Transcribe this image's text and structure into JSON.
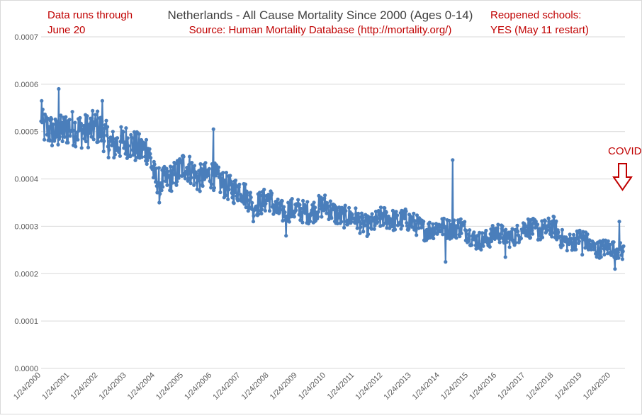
{
  "chart_data": {
    "type": "line",
    "title": "Netherlands - All Cause Mortality Since 2000 (Ages 0-14)",
    "subtitle": "Source: Human Mortality Database (http://mortality.org/)",
    "annotations": {
      "top_left": [
        "Data runs through",
        "June 20"
      ],
      "top_right": [
        "Reopened schools:",
        "YES (May 11 restart)"
      ],
      "covid": "COVID"
    },
    "series_color": "#4a7ebb",
    "annotation_color": "#c00000",
    "ylim": [
      0,
      0.0007
    ],
    "yticks": [
      "0.0000",
      "0.0001",
      "0.0002",
      "0.0003",
      "0.0004",
      "0.0005",
      "0.0006",
      "0.0007"
    ],
    "ytick_values": [
      0,
      0.0001,
      0.0002,
      0.0003,
      0.0004,
      0.0005,
      0.0006,
      0.0007
    ],
    "xlim": [
      2000.0,
      2020.5
    ],
    "xtick_labels": [
      "1/24/2000",
      "1/24/2001",
      "1/24/2002",
      "1/24/2003",
      "1/24/2004",
      "1/24/2005",
      "1/24/2006",
      "1/24/2007",
      "1/24/2008",
      "1/24/2009",
      "1/24/2010",
      "1/24/2011",
      "1/24/2012",
      "1/24/2013",
      "1/24/2014",
      "1/24/2015",
      "1/24/2016",
      "1/24/2017",
      "1/24/2018",
      "1/24/2019",
      "1/24/2020"
    ],
    "xtick_positions": [
      2000,
      2001,
      2002,
      2003,
      2004,
      2005,
      2006,
      2007,
      2008,
      2009,
      2010,
      2011,
      2012,
      2013,
      2014,
      2015,
      2016,
      2017,
      2018,
      2019,
      2020
    ],
    "grid": true,
    "series": [
      {
        "x": [
          2000.0,
          2000.25,
          2000.5,
          2000.75,
          2001.0,
          2001.25,
          2001.5,
          2001.75,
          2002.0,
          2002.25,
          2002.5,
          2002.75,
          2003.0,
          2003.25,
          2003.5,
          2003.75,
          2004.0,
          2004.25,
          2004.5,
          2004.75,
          2005.0,
          2005.25,
          2005.5,
          2005.75,
          2006.0,
          2006.25,
          2006.5,
          2006.75,
          2007.0,
          2007.25,
          2007.5,
          2007.75,
          2008.0,
          2008.25,
          2008.5,
          2008.75,
          2009.0,
          2009.25,
          2009.5,
          2009.75,
          2010.0,
          2010.25,
          2010.5,
          2010.75,
          2011.0,
          2011.25,
          2011.5,
          2011.75,
          2012.0,
          2012.25,
          2012.5,
          2012.75,
          2013.0,
          2013.25,
          2013.5,
          2013.75,
          2014.0,
          2014.25,
          2014.5,
          2014.75,
          2015.0,
          2015.25,
          2015.5,
          2015.75,
          2016.0,
          2016.25,
          2016.5,
          2016.75,
          2017.0,
          2017.25,
          2017.5,
          2017.75,
          2018.0,
          2018.25,
          2018.5,
          2018.75,
          2019.0,
          2019.25,
          2019.5,
          2019.75,
          2020.0,
          2020.25,
          2020.45
        ],
        "y": [
          0.00051,
          0.000505,
          0.000495,
          0.0005,
          0.00051,
          0.000505,
          0.0005,
          0.000505,
          0.00051,
          0.00049,
          0.00047,
          0.000475,
          0.00048,
          0.00047,
          0.00046,
          0.000465,
          0.0004,
          0.000395,
          0.0004,
          0.00041,
          0.00043,
          0.00042,
          0.0004,
          0.000405,
          0.00041,
          0.000395,
          0.000385,
          0.000375,
          0.00038,
          0.00036,
          0.000345,
          0.00035,
          0.00036,
          0.000335,
          0.00033,
          0.000335,
          0.000335,
          0.00033,
          0.00033,
          0.00034,
          0.000345,
          0.00033,
          0.00032,
          0.00032,
          0.00032,
          0.000305,
          0.0003,
          0.00031,
          0.00032,
          0.000315,
          0.00031,
          0.000315,
          0.00031,
          0.0003,
          0.00029,
          0.000295,
          0.0003,
          0.000295,
          0.000295,
          0.0003,
          0.000285,
          0.00027,
          0.00027,
          0.000275,
          0.00029,
          0.00028,
          0.000275,
          0.000285,
          0.0003,
          0.000295,
          0.00029,
          0.000295,
          0.0003,
          0.000275,
          0.000265,
          0.00027,
          0.00028,
          0.00026,
          0.00025,
          0.000255,
          0.000255,
          0.00025,
          0.000245
        ]
      }
    ],
    "notable_points": [
      {
        "x": 2000.02,
        "y": 0.000565
      },
      {
        "x": 2000.62,
        "y": 0.00059
      },
      {
        "x": 2002.15,
        "y": 0.000565
      },
      {
        "x": 2004.15,
        "y": 0.00035
      },
      {
        "x": 2006.05,
        "y": 0.000505
      },
      {
        "x": 2007.45,
        "y": 0.00031
      },
      {
        "x": 2008.6,
        "y": 0.00028
      },
      {
        "x": 2014.45,
        "y": 0.00044
      },
      {
        "x": 2014.2,
        "y": 0.000225
      },
      {
        "x": 2016.3,
        "y": 0.000235
      },
      {
        "x": 2019.0,
        "y": 0.00024
      },
      {
        "x": 2020.15,
        "y": 0.00021
      },
      {
        "x": 2020.3,
        "y": 0.00031
      }
    ]
  }
}
